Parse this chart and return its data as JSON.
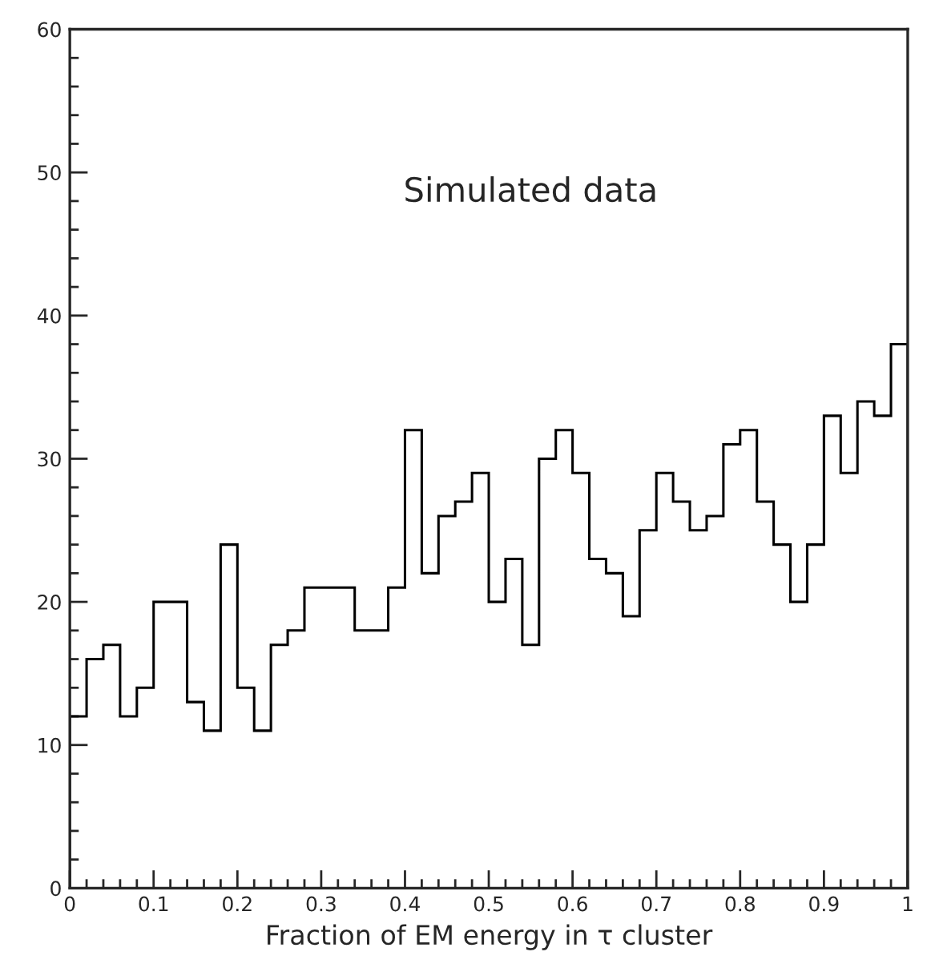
{
  "chart_data": {
    "type": "histogram",
    "xlabel": "Fraction of EM energy in τ cluster",
    "annotations": [
      "Simulated data"
    ],
    "bins": [
      0,
      0.02,
      0.04,
      0.06,
      0.08,
      0.1,
      0.12,
      0.14,
      0.16,
      0.18,
      0.2,
      0.22,
      0.24,
      0.26,
      0.28,
      0.3,
      0.32,
      0.34,
      0.36,
      0.38,
      0.4,
      0.42,
      0.44,
      0.46,
      0.48,
      0.5,
      0.52,
      0.54,
      0.56,
      0.58,
      0.6,
      0.62,
      0.64,
      0.66,
      0.68,
      0.7,
      0.72,
      0.74,
      0.76,
      0.78,
      0.8,
      0.82,
      0.84,
      0.86,
      0.88,
      0.9,
      0.92,
      0.94,
      0.96,
      0.98,
      1
    ],
    "values": [
      12,
      16,
      17,
      12,
      14,
      20,
      20,
      13,
      11,
      24,
      14,
      11,
      17,
      18,
      21,
      21,
      21,
      18,
      18,
      21,
      32,
      22,
      26,
      27,
      29,
      20,
      23,
      17,
      30,
      32,
      29,
      23,
      22,
      19,
      25,
      29,
      27,
      25,
      26,
      31,
      32,
      27,
      24,
      20,
      24,
      33,
      29,
      34,
      33,
      38
    ],
    "color": "#000000",
    "xlim": [
      0,
      1
    ],
    "ylim": [
      0,
      60
    ],
    "xticks": [
      0,
      0.1,
      0.2,
      0.3,
      0.4,
      0.5,
      0.6,
      0.7,
      0.8,
      0.9,
      1
    ],
    "yticks": [
      0,
      10,
      20,
      30,
      40,
      50,
      60
    ],
    "grid": false,
    "legend": false
  }
}
